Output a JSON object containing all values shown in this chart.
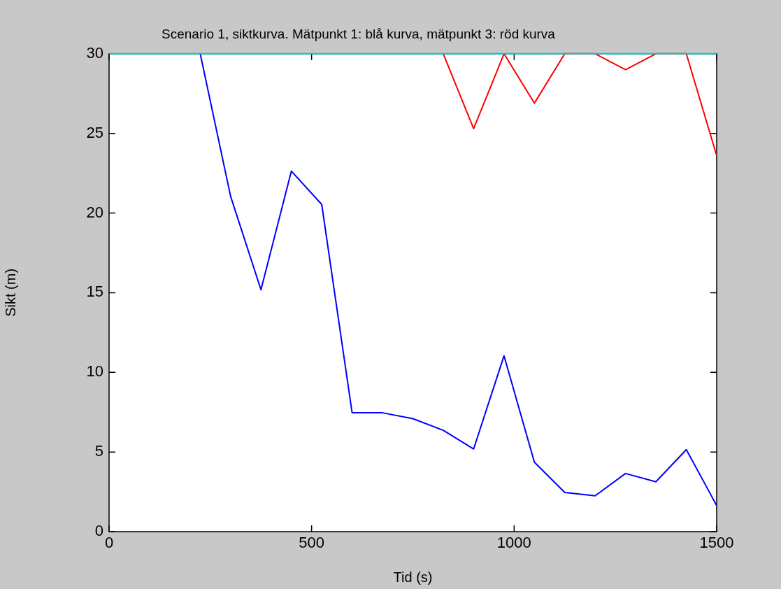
{
  "chart_data": {
    "type": "line",
    "title": "Scenario 1, siktkurva. Mätpunkt 1: blå kurva, mätpunkt 3: röd kurva",
    "xlabel": "Tid (s)",
    "ylabel": "Sikt (m)",
    "xlim": [
      0,
      1500
    ],
    "ylim": [
      0,
      30
    ],
    "xticks": [
      0,
      500,
      1000,
      1500
    ],
    "yticks": [
      0,
      5,
      10,
      15,
      20,
      25,
      30
    ],
    "marker": "none",
    "line_style": "solid",
    "series": [
      {
        "color": "#0000ff",
        "x": [
          225,
          300,
          375,
          450,
          525,
          600,
          675,
          750,
          825,
          900,
          975,
          1050,
          1125,
          1200,
          1275,
          1350,
          1425,
          1500
        ],
        "values": [
          30,
          21.05,
          15.18,
          22.63,
          20.54,
          7.46,
          7.46,
          7.09,
          6.36,
          5.19,
          11.04,
          4.36,
          2.46,
          2.25,
          3.65,
          3.13,
          5.15,
          1.64
        ]
      },
      {
        "color": "#ff0000",
        "x": [
          825,
          900,
          975,
          1050,
          1125,
          1200,
          1275,
          1350,
          1425,
          1500
        ],
        "values": [
          30,
          25.3,
          30,
          26.9,
          30,
          30,
          29.0,
          30,
          30,
          23.6
        ]
      },
      {
        "color": "#00cccc",
        "x": [
          0,
          1500
        ],
        "values": [
          30,
          30
        ]
      }
    ]
  }
}
